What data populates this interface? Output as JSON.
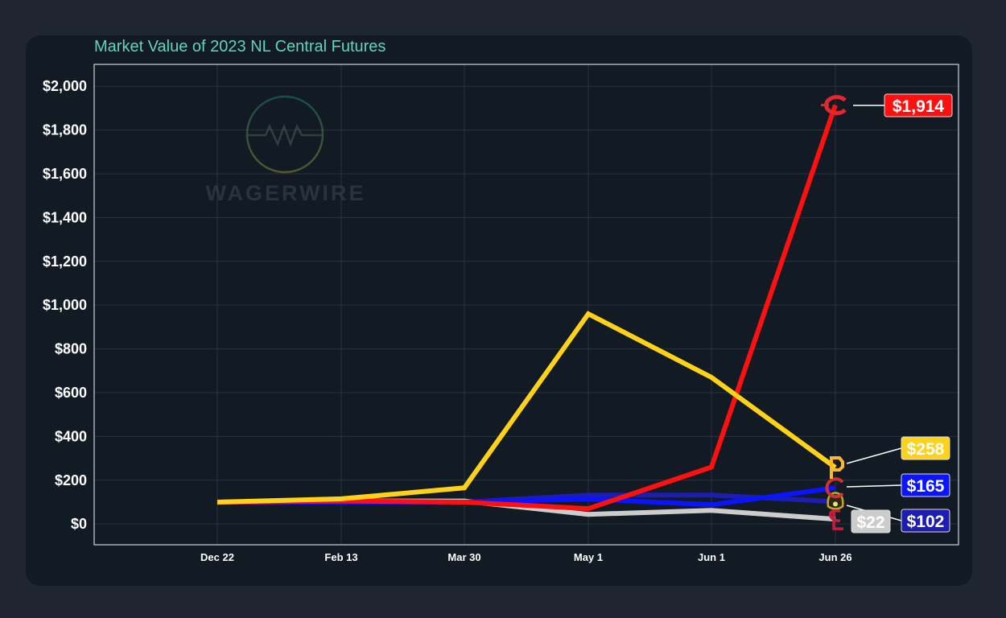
{
  "chart_data": {
    "type": "line",
    "title": "Market Value of 2023 NL Central Futures",
    "xlabel": "",
    "ylabel": "",
    "categories": [
      "Dec 22",
      "Feb 13",
      "Mar 30",
      "May 1",
      "Jun 1",
      "Jun 26"
    ],
    "ylim": [
      -95,
      2100
    ],
    "yticks": [
      0,
      200,
      400,
      600,
      800,
      1000,
      1200,
      1400,
      1600,
      1800,
      2000
    ],
    "ytick_labels": [
      "$0",
      "$200",
      "$400",
      "$600",
      "$800",
      "$1,000",
      "$1,200",
      "$1,400",
      "$1,600",
      "$1,800",
      "$2,000"
    ],
    "grid": true,
    "series": [
      {
        "color": "#1d1db0",
        "values": [
          100,
          100,
          100,
          132,
          132,
          102
        ],
        "end_label": "$102",
        "logo": "brewers-logo"
      },
      {
        "color": "#cccccc",
        "values": [
          100,
          105,
          105,
          44,
          62,
          22
        ],
        "end_label": "$22",
        "logo": "cardinals-logo",
        "label_text_color": "#ffffff"
      },
      {
        "color": "#0a14ff",
        "values": [
          100,
          100,
          100,
          114,
          88,
          165
        ],
        "end_label": "$165",
        "logo": "cubs-logo"
      },
      {
        "color": "#ff1010",
        "values": [
          100,
          105,
          100,
          70,
          260,
          1914
        ],
        "end_label": "$1,914",
        "logo": "reds-logo"
      },
      {
        "color": "#ffd21a",
        "values": [
          100,
          115,
          165,
          960,
          670,
          258
        ],
        "end_label": "$258",
        "logo": "pirates-logo"
      }
    ]
  },
  "watermark": "WAGERWIRE"
}
